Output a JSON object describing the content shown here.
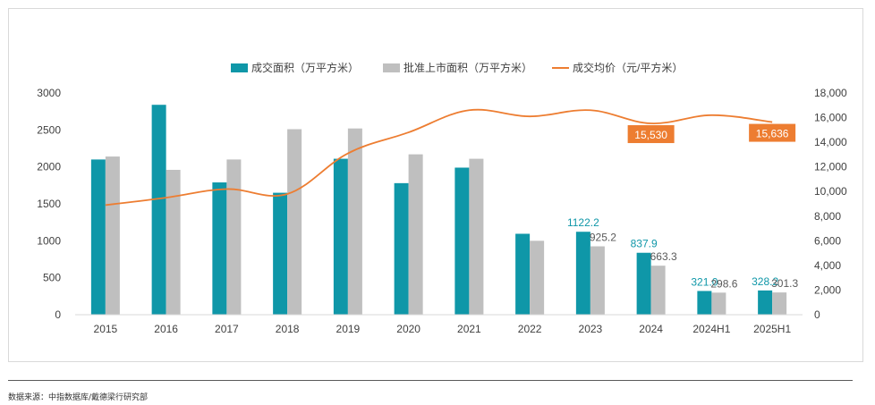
{
  "chart_data": {
    "type": "bar",
    "categories": [
      "2015",
      "2016",
      "2017",
      "2018",
      "2019",
      "2020",
      "2021",
      "2022",
      "2023",
      "2024",
      "2024H1",
      "2025H1"
    ],
    "series": [
      {
        "name": "成交面积（万平方米）",
        "kind": "bar",
        "axis": "left",
        "color": "#0f97a8",
        "values": [
          2100,
          2840,
          1790,
          1650,
          2110,
          1780,
          1990,
          1095,
          1122.2,
          837.9,
          321.0,
          328.2
        ]
      },
      {
        "name": "批准上市面积（万平方米）",
        "kind": "bar",
        "axis": "left",
        "color": "#bfbfbf",
        "values": [
          2140,
          1960,
          2100,
          2510,
          2520,
          2170,
          2110,
          1000,
          925.2,
          663.3,
          298.6,
          301.3
        ]
      },
      {
        "name": "成交均价（元/平方米）",
        "kind": "line",
        "axis": "right",
        "color": "#ed7d31",
        "values": [
          8900,
          9500,
          10200,
          9800,
          13100,
          14800,
          16600,
          16100,
          16600,
          15530,
          16200,
          15636
        ]
      }
    ],
    "y_left": {
      "min": 0,
      "max": 3000,
      "ticks": [
        "0",
        "500",
        "1000",
        "1500",
        "2000",
        "2500",
        "3000"
      ]
    },
    "y_right": {
      "min": 0,
      "max": 18000,
      "ticks": [
        "0",
        "2,000",
        "4,000",
        "6,000",
        "8,000",
        "10,000",
        "12,000",
        "14,000",
        "16,000",
        "18,000"
      ]
    },
    "bar_labels": [
      {
        "series": 0,
        "index": 8,
        "text": "1122.2"
      },
      {
        "series": 1,
        "index": 8,
        "text": "925.2"
      },
      {
        "series": 0,
        "index": 9,
        "text": "837.9"
      },
      {
        "series": 1,
        "index": 9,
        "text": "663.3"
      },
      {
        "series": 0,
        "index": 10,
        "text": "321.0"
      },
      {
        "series": 1,
        "index": 10,
        "text": "298.6"
      },
      {
        "series": 0,
        "index": 11,
        "text": "328.2"
      },
      {
        "series": 1,
        "index": 11,
        "text": "301.3"
      }
    ],
    "line_callouts": [
      {
        "index": 9,
        "text": "15,530"
      },
      {
        "index": 11,
        "text": "15,636"
      }
    ],
    "legend_position": "top-center",
    "grid": false,
    "colors": {
      "label_teal": "#0f97a8",
      "label_gray": "#595959",
      "callout_bg": "#ed7d31",
      "callout_text": "#ffffff",
      "axis_text": "#404040"
    }
  },
  "source_note": "数据来源：中指数据库/戴德梁行研究部"
}
